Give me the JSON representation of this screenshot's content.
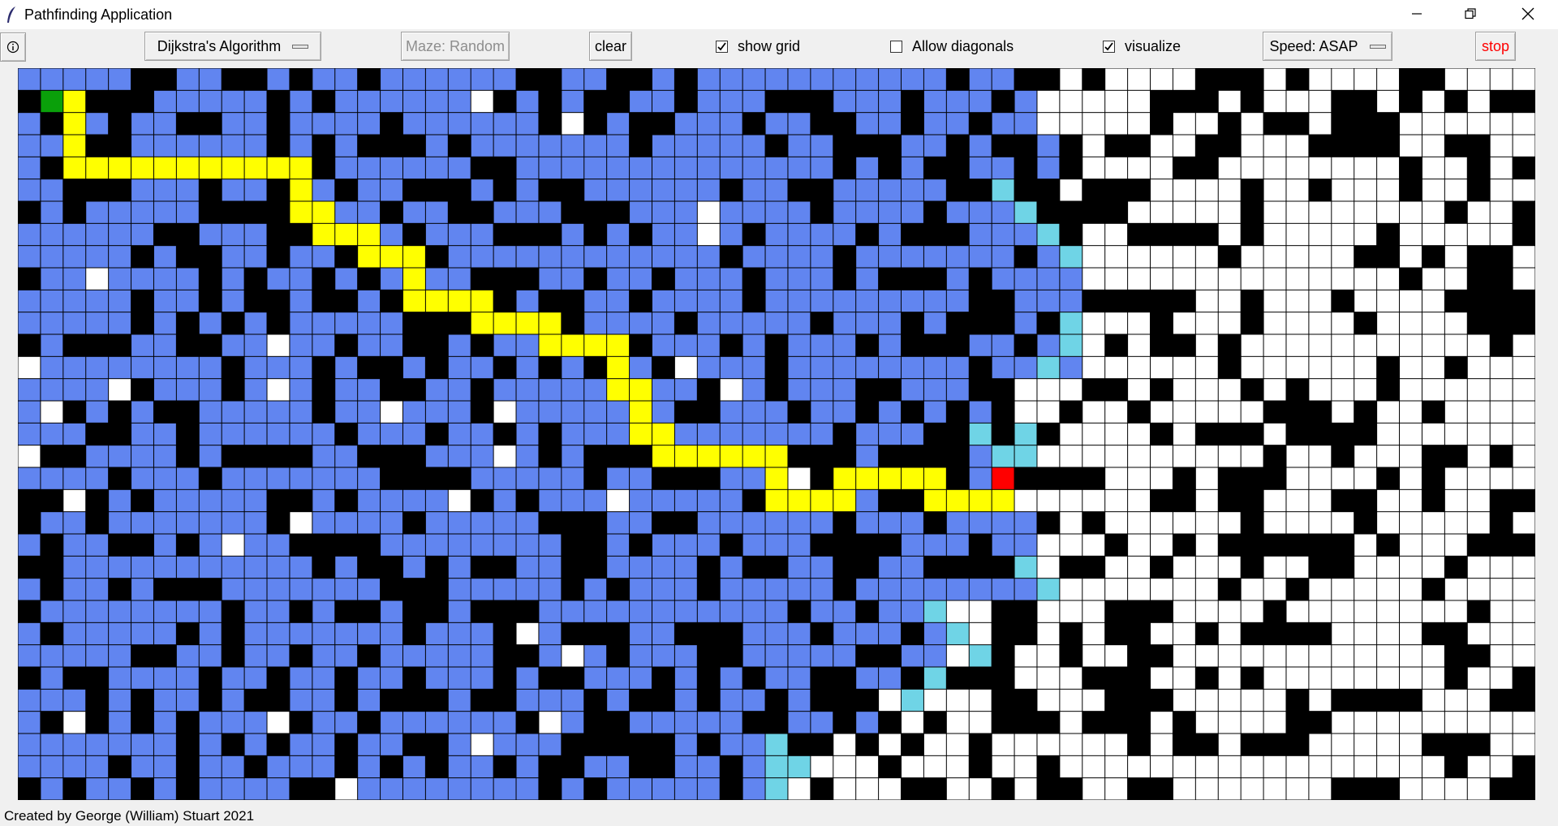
{
  "window": {
    "title": "Pathfinding Application",
    "icons": [
      "feather-icon",
      "minimize-icon",
      "restore-icon",
      "close-icon"
    ]
  },
  "toolbar": {
    "info_icon": "info-icon",
    "algorithm_label": "Dijkstra's Algorithm",
    "maze_label": "Maze: Random",
    "clear_label": "clear",
    "show_grid_label": "show grid",
    "show_grid_checked": true,
    "allow_diagonals_label": "Allow diagonals",
    "allow_diagonals_checked": false,
    "visualize_label": "visualize",
    "visualize_checked": true,
    "speed_label": "Speed: ASAP",
    "stop_label": "stop",
    "stop_color": "#ff0000"
  },
  "grid": {
    "columns": 67,
    "rows": 33,
    "legend": {
      "wall": "#000000",
      "empty": "#ffffff",
      "visited": "#6185f0",
      "frontier": "#6fd4e6",
      "path": "#ffff00",
      "start": "#0aa00a",
      "end": "#ff0000"
    },
    "start": [
      1,
      1
    ],
    "end": [
      43,
      18
    ],
    "path": [
      [
        1,
        1
      ],
      [
        2,
        1
      ],
      [
        2,
        2
      ],
      [
        2,
        3
      ],
      [
        2,
        4
      ],
      [
        3,
        4
      ],
      [
        4,
        4
      ],
      [
        5,
        4
      ],
      [
        6,
        4
      ],
      [
        7,
        4
      ],
      [
        8,
        4
      ],
      [
        9,
        4
      ],
      [
        10,
        4
      ],
      [
        11,
        4
      ],
      [
        12,
        4
      ],
      [
        12,
        5
      ],
      [
        12,
        6
      ],
      [
        13,
        6
      ],
      [
        13,
        7
      ],
      [
        14,
        7
      ],
      [
        15,
        7
      ],
      [
        15,
        8
      ],
      [
        16,
        8
      ],
      [
        17,
        8
      ],
      [
        17,
        9
      ],
      [
        17,
        10
      ],
      [
        18,
        10
      ],
      [
        19,
        10
      ],
      [
        20,
        10
      ],
      [
        20,
        11
      ],
      [
        21,
        11
      ],
      [
        22,
        11
      ],
      [
        23,
        11
      ],
      [
        23,
        12
      ],
      [
        24,
        12
      ],
      [
        25,
        12
      ],
      [
        26,
        12
      ],
      [
        26,
        13
      ],
      [
        26,
        14
      ],
      [
        27,
        14
      ],
      [
        27,
        15
      ],
      [
        27,
        16
      ],
      [
        28,
        16
      ],
      [
        28,
        17
      ],
      [
        29,
        17
      ],
      [
        30,
        17
      ],
      [
        31,
        17
      ],
      [
        32,
        17
      ],
      [
        33,
        17
      ],
      [
        33,
        18
      ],
      [
        33,
        19
      ],
      [
        34,
        19
      ],
      [
        35,
        19
      ],
      [
        36,
        19
      ],
      [
        36,
        18
      ],
      [
        37,
        18
      ],
      [
        38,
        18
      ],
      [
        39,
        18
      ],
      [
        40,
        18
      ],
      [
        40,
        19
      ],
      [
        41,
        19
      ],
      [
        42,
        19
      ],
      [
        43,
        19
      ],
      [
        43,
        18
      ]
    ],
    "frontier": [
      [
        43,
        5
      ],
      [
        44,
        6
      ],
      [
        45,
        7
      ],
      [
        46,
        8
      ],
      [
        46,
        11
      ],
      [
        46,
        12
      ],
      [
        45,
        13
      ],
      [
        42,
        16
      ],
      [
        44,
        16
      ],
      [
        43,
        17
      ],
      [
        44,
        17
      ],
      [
        44,
        22
      ],
      [
        45,
        23
      ],
      [
        40,
        24
      ],
      [
        41,
        25
      ],
      [
        42,
        26
      ],
      [
        40,
        27
      ],
      [
        39,
        28
      ],
      [
        33,
        30
      ],
      [
        33,
        31
      ],
      [
        34,
        31
      ],
      [
        33,
        32
      ]
    ]
  },
  "footer": {
    "credit": "Created by George (William) Stuart 2021"
  }
}
